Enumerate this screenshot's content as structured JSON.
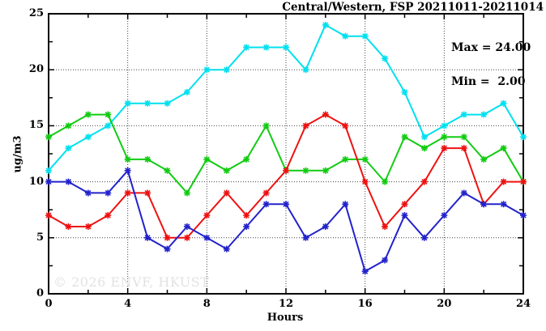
{
  "title": "Central/Western, FSP 20211011-20211014",
  "stats": {
    "max_line": "Max = 24.00",
    "min_line": "Min =  2.00"
  },
  "watermark": "© 2026 ENVF, HKUST",
  "chart_data": {
    "type": "line",
    "title": "Central/Western, FSP 20211011-20211014",
    "xlabel": "Hours",
    "ylabel": "ug/m3",
    "x": [
      0,
      1,
      2,
      3,
      4,
      5,
      6,
      7,
      8,
      9,
      10,
      11,
      12,
      13,
      14,
      15,
      16,
      17,
      18,
      19,
      20,
      21,
      22,
      23,
      24
    ],
    "series": [
      {
        "name": "series-cyan",
        "color": "#00e0ee",
        "marker": "asterisk",
        "values": [
          11,
          13,
          14,
          15,
          17,
          17,
          17,
          18,
          20,
          20,
          22,
          22,
          22,
          20,
          24,
          23,
          23,
          21,
          18,
          14,
          15,
          16,
          16,
          17,
          14
        ]
      },
      {
        "name": "series-green",
        "color": "#11cc11",
        "marker": "asterisk",
        "values": [
          14,
          15,
          16,
          16,
          12,
          12,
          11,
          9,
          12,
          11,
          12,
          15,
          11,
          11,
          11,
          12,
          12,
          10,
          14,
          13,
          14,
          14,
          12,
          13,
          10
        ]
      },
      {
        "name": "series-red",
        "color": "#ee1111",
        "marker": "asterisk",
        "values": [
          7,
          6,
          6,
          7,
          9,
          9,
          5,
          5,
          7,
          9,
          7,
          9,
          11,
          15,
          16,
          15,
          10,
          6,
          8,
          10,
          13,
          13,
          8,
          10,
          10
        ]
      },
      {
        "name": "series-blue",
        "color": "#2222cc",
        "marker": "asterisk",
        "values": [
          10,
          10,
          9,
          9,
          11,
          5,
          4,
          6,
          5,
          4,
          6,
          8,
          8,
          5,
          6,
          8,
          2,
          3,
          7,
          5,
          7,
          9,
          8,
          8,
          7
        ]
      }
    ],
    "xlim": [
      0,
      24
    ],
    "ylim": [
      0,
      25
    ],
    "xticks_major": [
      0,
      4,
      8,
      12,
      16,
      20,
      24
    ],
    "xticks_minor": [
      2,
      6,
      10,
      14,
      18,
      22
    ],
    "yticks_major": [
      0,
      5,
      10,
      15,
      20,
      25
    ],
    "yticks_minor": [
      2.5,
      7.5,
      12.5,
      17.5,
      22.5
    ],
    "grid_x": [
      4,
      8,
      12,
      16,
      20
    ],
    "grid_y": [
      5,
      10,
      15,
      20
    ],
    "grid_style": "dotted",
    "legend": "none",
    "frame_color": "#000000",
    "grid_color": "#444444",
    "annotations": [
      "Max = 24.00",
      "Min =  2.00"
    ],
    "stats": {
      "max": 24.0,
      "min": 2.0
    }
  }
}
